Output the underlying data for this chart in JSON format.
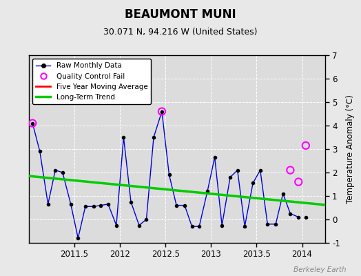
{
  "title": "BEAUMONT MUNI",
  "subtitle": "30.071 N, 94.216 W (United States)",
  "ylabel": "Temperature Anomaly (°C)",
  "watermark": "Berkeley Earth",
  "ylim": [
    -1,
    7
  ],
  "xlim": [
    2011.0,
    2014.25
  ],
  "yticks": [
    -1,
    0,
    1,
    2,
    3,
    4,
    5,
    6,
    7
  ],
  "xticks": [
    2011.5,
    2012.0,
    2012.5,
    2013.0,
    2013.5,
    2014.0
  ],
  "fig_bg_color": "#e8e8e8",
  "plot_bg_color": "#dcdcdc",
  "raw_x": [
    2011.04,
    2011.12,
    2011.21,
    2011.29,
    2011.37,
    2011.46,
    2011.54,
    2011.62,
    2011.71,
    2011.79,
    2011.87,
    2011.96,
    2012.04,
    2012.12,
    2012.21,
    2012.29,
    2012.37,
    2012.46,
    2012.54,
    2012.62,
    2012.71,
    2012.79,
    2012.87,
    2012.96,
    2013.04,
    2013.12,
    2013.21,
    2013.29,
    2013.37,
    2013.46,
    2013.54,
    2013.62,
    2013.71,
    2013.79,
    2013.87,
    2013.96
  ],
  "raw_y": [
    4.1,
    2.9,
    0.65,
    2.1,
    2.0,
    0.65,
    -0.8,
    0.55,
    0.55,
    0.6,
    0.65,
    -0.25,
    3.5,
    0.75,
    -0.25,
    0.0,
    3.5,
    4.6,
    1.9,
    0.6,
    0.6,
    -0.3,
    -0.3,
    1.2,
    2.65,
    -0.25,
    1.8,
    2.1,
    -0.3,
    1.55,
    2.1,
    -0.2,
    -0.2,
    1.1,
    0.25,
    0.1
  ],
  "lone_dot_x": [
    2014.04
  ],
  "lone_dot_y": [
    0.1
  ],
  "qc_fail_x": [
    2011.04,
    2012.46,
    2013.87,
    2013.96,
    2014.04
  ],
  "qc_fail_y": [
    4.1,
    4.6,
    2.1,
    1.6,
    3.15
  ],
  "trend_x": [
    2011.0,
    2014.25
  ],
  "trend_y": [
    1.85,
    0.62
  ],
  "raw_color": "#0000dd",
  "raw_marker_color": "#000000",
  "qc_color": "#ff00ff",
  "trend_color": "#00cc00",
  "moving_avg_color": "#ff0000",
  "legend_loc": "upper left"
}
